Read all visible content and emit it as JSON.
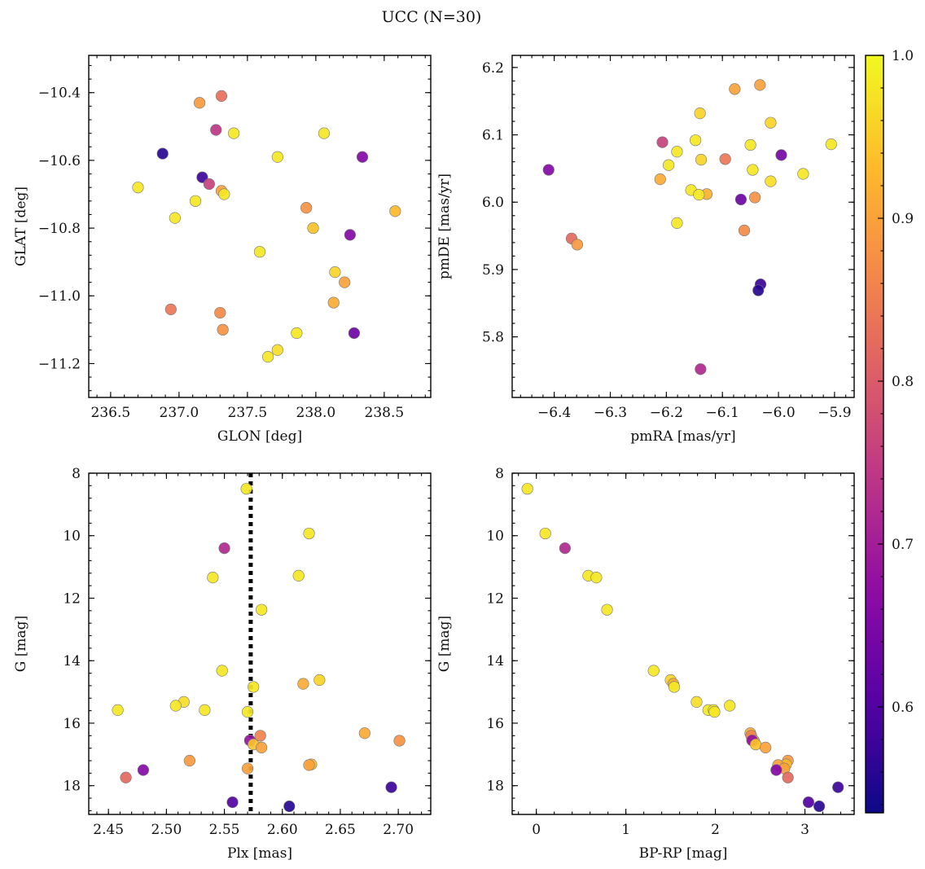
{
  "suptitle": "UCC (N=30)",
  "colorbar": {
    "min": 0.535,
    "max": 1.0,
    "ticks": [
      1.0,
      0.9,
      0.8,
      0.7,
      0.6
    ],
    "tick_labels": [
      "1.0",
      "0.9",
      "0.8",
      "0.7",
      "0.6"
    ],
    "colormap": "plasma"
  },
  "chart_data": [
    {
      "type": "scatter",
      "xlabel": "GLON [deg]",
      "ylabel": "GLAT [deg]",
      "xlim": [
        236.34,
        238.84
      ],
      "ylim": [
        -11.3,
        -10.29
      ],
      "xticks": [
        236.5,
        237.0,
        237.5,
        238.0,
        238.5
      ],
      "xtick_labels": [
        "236.5",
        "237.0",
        "237.5",
        "238.0",
        "238.5"
      ],
      "yticks": [
        -10.4,
        -10.6,
        -10.8,
        -11.0,
        -11.2
      ],
      "ytick_labels": [
        "−10.4",
        "−10.6",
        "−10.8",
        "−11.0",
        "−11.2"
      ],
      "invert_y": false,
      "points": [
        {
          "x": 237.15,
          "y": -10.43,
          "c": 0.89
        },
        {
          "x": 237.31,
          "y": -10.41,
          "c": 0.83
        },
        {
          "x": 237.27,
          "y": -10.51,
          "c": 0.74
        },
        {
          "x": 237.4,
          "y": -10.52,
          "c": 0.98
        },
        {
          "x": 238.06,
          "y": -10.52,
          "c": 0.98
        },
        {
          "x": 236.88,
          "y": -10.58,
          "c": 0.56
        },
        {
          "x": 237.72,
          "y": -10.59,
          "c": 0.98
        },
        {
          "x": 238.34,
          "y": -10.59,
          "c": 0.66
        },
        {
          "x": 237.17,
          "y": -10.65,
          "c": 0.58
        },
        {
          "x": 237.22,
          "y": -10.67,
          "c": 0.76
        },
        {
          "x": 236.7,
          "y": -10.68,
          "c": 0.98
        },
        {
          "x": 237.31,
          "y": -10.69,
          "c": 0.9
        },
        {
          "x": 237.33,
          "y": -10.7,
          "c": 0.98
        },
        {
          "x": 237.12,
          "y": -10.72,
          "c": 0.98
        },
        {
          "x": 237.93,
          "y": -10.74,
          "c": 0.88
        },
        {
          "x": 238.58,
          "y": -10.75,
          "c": 0.93
        },
        {
          "x": 236.97,
          "y": -10.77,
          "c": 0.98
        },
        {
          "x": 237.98,
          "y": -10.8,
          "c": 0.94
        },
        {
          "x": 238.25,
          "y": -10.82,
          "c": 0.66
        },
        {
          "x": 237.59,
          "y": -10.87,
          "c": 0.98
        },
        {
          "x": 238.14,
          "y": -10.93,
          "c": 0.96
        },
        {
          "x": 238.21,
          "y": -10.96,
          "c": 0.9
        },
        {
          "x": 238.13,
          "y": -11.02,
          "c": 0.91
        },
        {
          "x": 236.94,
          "y": -11.04,
          "c": 0.84
        },
        {
          "x": 237.3,
          "y": -11.05,
          "c": 0.87
        },
        {
          "x": 237.32,
          "y": -11.1,
          "c": 0.88
        },
        {
          "x": 238.28,
          "y": -11.11,
          "c": 0.63
        },
        {
          "x": 237.86,
          "y": -11.11,
          "c": 0.98
        },
        {
          "x": 237.72,
          "y": -11.16,
          "c": 0.97
        },
        {
          "x": 237.65,
          "y": -11.18,
          "c": 0.98
        }
      ]
    },
    {
      "type": "scatter",
      "xlabel": "pmRA [mas/yr]",
      "ylabel": "pmDE [mas/yr]",
      "xlim": [
        -6.475,
        -5.865
      ],
      "ylim": [
        5.71,
        6.218
      ],
      "xticks": [
        -6.4,
        -6.3,
        -6.2,
        -6.1,
        -6.0,
        -5.9
      ],
      "xtick_labels": [
        "−6.4",
        "−6.3",
        "−6.2",
        "−6.1",
        "−6.0",
        "−5.9"
      ],
      "yticks": [
        5.8,
        5.9,
        6.0,
        6.1,
        6.2
      ],
      "ytick_labels": [
        "5.8",
        "5.9",
        "6.0",
        "6.1",
        "6.2"
      ],
      "invert_y": false,
      "points": [
        {
          "x": -6.033,
          "y": 6.174,
          "c": 0.9
        },
        {
          "x": -6.078,
          "y": 6.168,
          "c": 0.9
        },
        {
          "x": -6.14,
          "y": 6.132,
          "c": 0.96
        },
        {
          "x": -6.014,
          "y": 6.118,
          "c": 0.96
        },
        {
          "x": -6.148,
          "y": 6.092,
          "c": 0.98
        },
        {
          "x": -6.207,
          "y": 6.089,
          "c": 0.76
        },
        {
          "x": -5.906,
          "y": 6.086,
          "c": 0.98
        },
        {
          "x": -6.05,
          "y": 6.085,
          "c": 0.98
        },
        {
          "x": -6.181,
          "y": 6.075,
          "c": 0.98
        },
        {
          "x": -5.995,
          "y": 6.07,
          "c": 0.64
        },
        {
          "x": -6.095,
          "y": 6.064,
          "c": 0.84
        },
        {
          "x": -6.138,
          "y": 6.063,
          "c": 0.96
        },
        {
          "x": -6.196,
          "y": 6.055,
          "c": 0.98
        },
        {
          "x": -6.046,
          "y": 6.048,
          "c": 0.98
        },
        {
          "x": -6.41,
          "y": 6.048,
          "c": 0.66
        },
        {
          "x": -5.956,
          "y": 6.042,
          "c": 0.98
        },
        {
          "x": -6.211,
          "y": 6.034,
          "c": 0.91
        },
        {
          "x": -6.014,
          "y": 6.031,
          "c": 0.97
        },
        {
          "x": -6.156,
          "y": 6.018,
          "c": 0.98
        },
        {
          "x": -6.128,
          "y": 6.012,
          "c": 0.92
        },
        {
          "x": -6.142,
          "y": 6.011,
          "c": 0.98
        },
        {
          "x": -6.042,
          "y": 6.007,
          "c": 0.88
        },
        {
          "x": -6.067,
          "y": 6.004,
          "c": 0.63
        },
        {
          "x": -6.181,
          "y": 5.969,
          "c": 0.98
        },
        {
          "x": -6.061,
          "y": 5.958,
          "c": 0.87
        },
        {
          "x": -6.369,
          "y": 5.946,
          "c": 0.82
        },
        {
          "x": -6.359,
          "y": 5.937,
          "c": 0.89
        },
        {
          "x": -6.032,
          "y": 5.878,
          "c": 0.58
        },
        {
          "x": -6.036,
          "y": 5.869,
          "c": 0.56
        },
        {
          "x": -6.139,
          "y": 5.752,
          "c": 0.72
        }
      ]
    },
    {
      "type": "scatter",
      "xlabel": "Plx [mas]",
      "ylabel": "G [mag]",
      "xlim": [
        2.433,
        2.728
      ],
      "ylim": [
        8.0,
        18.92
      ],
      "xticks": [
        2.45,
        2.5,
        2.55,
        2.6,
        2.65,
        2.7
      ],
      "xtick_labels": [
        "2.45",
        "2.50",
        "2.55",
        "2.60",
        "2.65",
        "2.70"
      ],
      "yticks": [
        8,
        10,
        12,
        14,
        16,
        18
      ],
      "ytick_labels": [
        "8",
        "10",
        "12",
        "14",
        "16",
        "18"
      ],
      "invert_y": true,
      "vline": 2.5727,
      "points": [
        {
          "x": 2.569,
          "y": 8.5,
          "c": 0.98
        },
        {
          "x": 2.623,
          "y": 9.93,
          "c": 0.98
        },
        {
          "x": 2.55,
          "y": 10.4,
          "c": 0.72
        },
        {
          "x": 2.614,
          "y": 11.28,
          "c": 0.98
        },
        {
          "x": 2.54,
          "y": 11.34,
          "c": 0.98
        },
        {
          "x": 2.582,
          "y": 12.37,
          "c": 0.98
        },
        {
          "x": 2.548,
          "y": 14.32,
          "c": 0.98
        },
        {
          "x": 2.632,
          "y": 14.62,
          "c": 0.96
        },
        {
          "x": 2.618,
          "y": 14.74,
          "c": 0.91
        },
        {
          "x": 2.575,
          "y": 14.84,
          "c": 0.98
        },
        {
          "x": 2.515,
          "y": 15.32,
          "c": 0.97
        },
        {
          "x": 2.508,
          "y": 15.44,
          "c": 0.98
        },
        {
          "x": 2.458,
          "y": 15.58,
          "c": 0.98
        },
        {
          "x": 2.533,
          "y": 15.58,
          "c": 0.98
        },
        {
          "x": 2.57,
          "y": 15.64,
          "c": 0.98
        },
        {
          "x": 2.671,
          "y": 16.32,
          "c": 0.91
        },
        {
          "x": 2.581,
          "y": 16.4,
          "c": 0.86
        },
        {
          "x": 2.701,
          "y": 16.56,
          "c": 0.88
        },
        {
          "x": 2.572,
          "y": 16.55,
          "c": 0.68
        },
        {
          "x": 2.575,
          "y": 16.68,
          "c": 0.94
        },
        {
          "x": 2.582,
          "y": 16.78,
          "c": 0.9
        },
        {
          "x": 2.52,
          "y": 17.2,
          "c": 0.89
        },
        {
          "x": 2.625,
          "y": 17.32,
          "c": 0.93
        },
        {
          "x": 2.623,
          "y": 17.34,
          "c": 0.9
        },
        {
          "x": 2.57,
          "y": 17.45,
          "c": 0.9
        },
        {
          "x": 2.48,
          "y": 17.5,
          "c": 0.66
        },
        {
          "x": 2.465,
          "y": 17.74,
          "c": 0.82
        },
        {
          "x": 2.694,
          "y": 18.05,
          "c": 0.58
        },
        {
          "x": 2.557,
          "y": 18.53,
          "c": 0.6
        },
        {
          "x": 2.606,
          "y": 18.66,
          "c": 0.56
        }
      ]
    },
    {
      "type": "scatter",
      "xlabel": "BP-RP [mag]",
      "ylabel": "G [mag]",
      "xlim": [
        -0.27,
        3.55
      ],
      "ylim": [
        8.0,
        18.92
      ],
      "xticks": [
        0,
        1,
        2,
        3
      ],
      "xtick_labels": [
        "0",
        "1",
        "2",
        "3"
      ],
      "yticks": [
        8,
        10,
        12,
        14,
        16,
        18
      ],
      "ytick_labels": [
        "8",
        "10",
        "12",
        "14",
        "16",
        "18"
      ],
      "invert_y": true,
      "points": [
        {
          "x": -0.1,
          "y": 8.5,
          "c": 0.98
        },
        {
          "x": 0.1,
          "y": 9.93,
          "c": 0.98
        },
        {
          "x": 0.32,
          "y": 10.4,
          "c": 0.72
        },
        {
          "x": 0.58,
          "y": 11.28,
          "c": 0.98
        },
        {
          "x": 0.67,
          "y": 11.34,
          "c": 0.98
        },
        {
          "x": 0.79,
          "y": 12.37,
          "c": 0.98
        },
        {
          "x": 1.31,
          "y": 14.32,
          "c": 0.98
        },
        {
          "x": 1.5,
          "y": 14.62,
          "c": 0.96
        },
        {
          "x": 1.53,
          "y": 14.74,
          "c": 0.91
        },
        {
          "x": 1.54,
          "y": 14.84,
          "c": 0.98
        },
        {
          "x": 1.79,
          "y": 15.32,
          "c": 0.97
        },
        {
          "x": 2.16,
          "y": 15.44,
          "c": 0.98
        },
        {
          "x": 1.92,
          "y": 15.58,
          "c": 0.98
        },
        {
          "x": 1.98,
          "y": 15.58,
          "c": 0.98
        },
        {
          "x": 1.99,
          "y": 15.64,
          "c": 0.98
        },
        {
          "x": 2.39,
          "y": 16.32,
          "c": 0.91
        },
        {
          "x": 2.4,
          "y": 16.4,
          "c": 0.86
        },
        {
          "x": 2.43,
          "y": 16.56,
          "c": 0.88
        },
        {
          "x": 2.41,
          "y": 16.55,
          "c": 0.68
        },
        {
          "x": 2.45,
          "y": 16.68,
          "c": 0.94
        },
        {
          "x": 2.56,
          "y": 16.78,
          "c": 0.9
        },
        {
          "x": 2.81,
          "y": 17.2,
          "c": 0.89
        },
        {
          "x": 2.79,
          "y": 17.32,
          "c": 0.93
        },
        {
          "x": 2.7,
          "y": 17.34,
          "c": 0.9
        },
        {
          "x": 2.77,
          "y": 17.45,
          "c": 0.9
        },
        {
          "x": 2.68,
          "y": 17.5,
          "c": 0.66
        },
        {
          "x": 2.81,
          "y": 17.74,
          "c": 0.82
        },
        {
          "x": 3.37,
          "y": 18.05,
          "c": 0.58
        },
        {
          "x": 3.04,
          "y": 18.53,
          "c": 0.6
        },
        {
          "x": 3.16,
          "y": 18.66,
          "c": 0.56
        }
      ]
    }
  ]
}
